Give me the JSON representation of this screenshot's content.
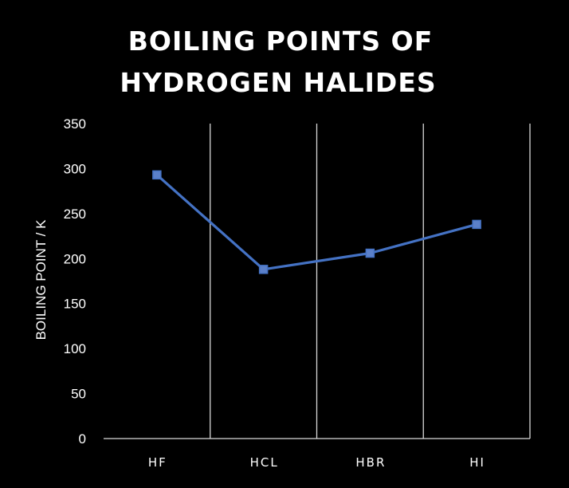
{
  "colors": {
    "background": "#000000",
    "text": "#ffffff",
    "gridline": "#d9d9d9",
    "series": "#4472c4",
    "marker": "#5b80c9"
  },
  "chart_data": {
    "type": "line",
    "title_lines": [
      "BOILING POINTS OF",
      "HYDROGEN HALIDES"
    ],
    "xlabel": "",
    "ylabel": "BOILING POINT / K",
    "categories": [
      "HF",
      "HCL",
      "HBR",
      "HI"
    ],
    "series": [
      {
        "values": [
          293,
          188,
          206,
          238
        ]
      }
    ],
    "ylim": [
      0,
      350
    ],
    "yticks": [
      0,
      50,
      100,
      150,
      200,
      250,
      300,
      350
    ],
    "grid": "vertical category dividers",
    "legend": "none",
    "marker": "square"
  }
}
